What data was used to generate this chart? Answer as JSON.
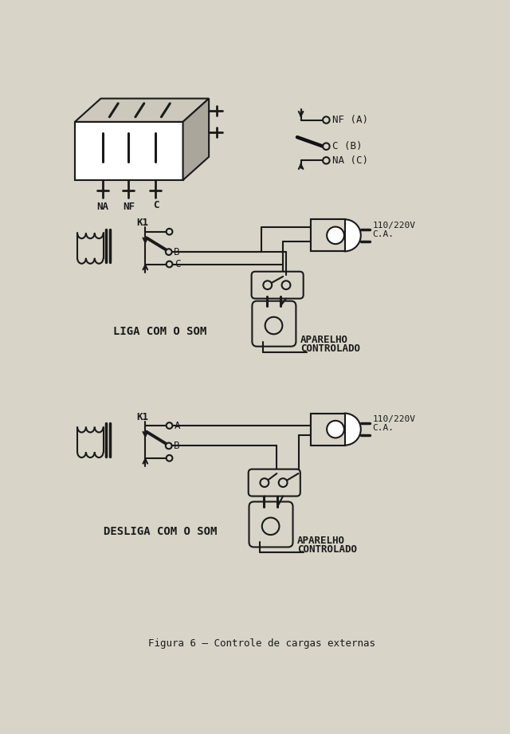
{
  "bg_color": "#d8d4c8",
  "lc": "#1a1a1a",
  "title": "Figura 6 – Controle de cargas externas",
  "label1": "LIGA COM O SOM",
  "label2": "DESLIGA COM O SOM",
  "aparelho": "APARELHO\nCONTROLADO",
  "voltage": "110/220V\nC.A.",
  "relay_pins": [
    "NA",
    "NF",
    "C"
  ],
  "k1": "K1",
  "legend": [
    "NF (A)",
    "C (B)",
    "NA (C)"
  ]
}
